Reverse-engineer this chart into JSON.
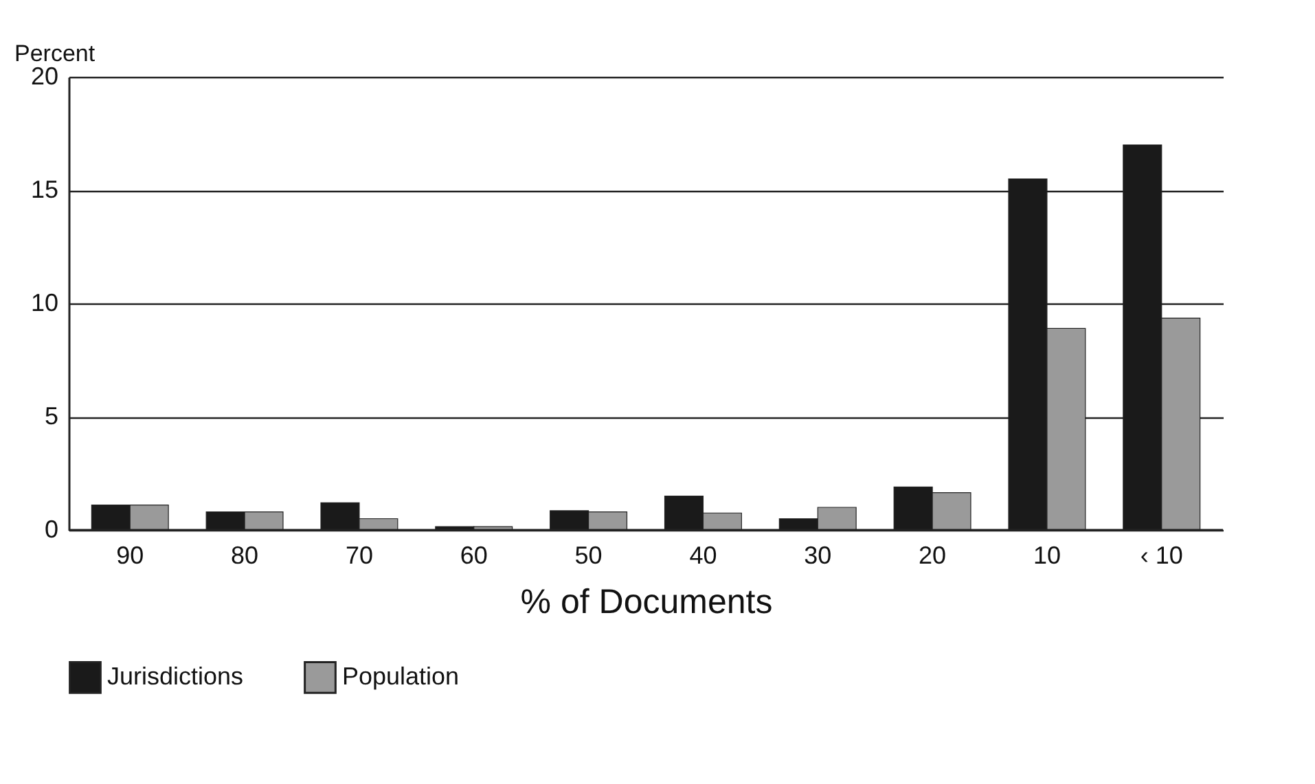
{
  "chart_data": {
    "type": "bar",
    "xlabel": "% of Documents",
    "ylabel": "Percent",
    "categories": [
      "90",
      "80",
      "70",
      "60",
      "50",
      "40",
      "30",
      "20",
      "10",
      "‹ 10"
    ],
    "series": [
      {
        "name": "Jurisdictions",
        "color": "#1a1a1a",
        "values": [
          1.1,
          0.8,
          1.2,
          0.15,
          0.85,
          1.5,
          0.5,
          1.9,
          15.5,
          17.0
        ]
      },
      {
        "name": "Population",
        "color": "#9a9a9a",
        "values": [
          1.1,
          0.8,
          0.5,
          0.15,
          0.8,
          0.75,
          1.0,
          1.65,
          8.9,
          9.35
        ]
      }
    ],
    "ylim": [
      0,
      20
    ],
    "yticks": [
      0,
      5,
      10,
      15,
      20
    ],
    "grid": "y",
    "legend": "bottom"
  }
}
